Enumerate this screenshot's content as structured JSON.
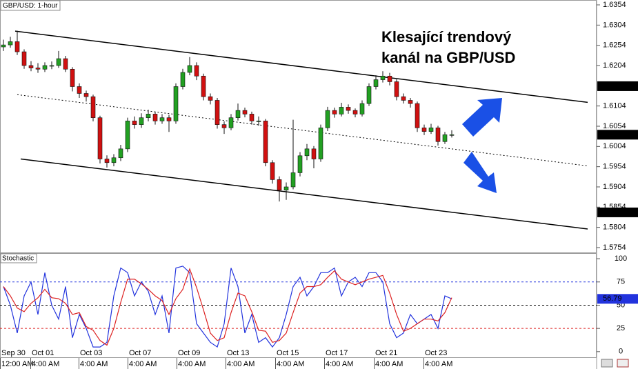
{
  "chart_data": {
    "type": "candlestick",
    "title": "GBP/USD: 1-hour",
    "annotation": [
      "Klesající trendový",
      "kanál na GBP/USD"
    ],
    "up_color": "#22a022",
    "down_color": "#d01010",
    "xlim": [
      -0.5,
      86
    ],
    "ylim": [
      1.5742,
      1.6366
    ],
    "yticks": [
      1.6354,
      1.6304,
      1.6254,
      1.6204,
      1.6104,
      1.6054,
      1.6004,
      1.5954,
      1.5904,
      1.5854,
      1.5804,
      1.5754
    ],
    "xticks": [
      {
        "value": -0.5,
        "label": "Sep 30"
      },
      {
        "value": 3.9,
        "label": "Oct 01"
      },
      {
        "value": 10.9,
        "label": "Oct 03"
      },
      {
        "value": 18,
        "label": "Oct 07"
      },
      {
        "value": 25.1,
        "label": "Oct 09"
      },
      {
        "value": 32.2,
        "label": "Oct 13"
      },
      {
        "value": 39.4,
        "label": "Oct 15"
      },
      {
        "value": 46.5,
        "label": "Oct 17"
      },
      {
        "value": 53.7,
        "label": "Oct 21"
      },
      {
        "value": 60.9,
        "label": "Oct 23"
      }
    ],
    "xtick_times": [
      "12:00 AM",
      "4:00 AM",
      "4:00 AM",
      "4:00 AM",
      "4:00 AM",
      "4:00 AM",
      "4:00 AM",
      "4:00 AM",
      "4:00 AM",
      "4:00 AM"
    ],
    "open": [
      1.625,
      1.6255,
      1.6263,
      1.6238,
      1.6204,
      1.6198,
      1.6195,
      1.6204,
      1.6204,
      1.6221,
      1.6195,
      1.6152,
      1.6135,
      1.6127,
      1.6075,
      1.5973,
      1.5964,
      1.5976,
      1.5998,
      1.6067,
      1.6058,
      1.6075,
      1.6084,
      1.6067,
      1.6075,
      1.6067,
      1.6152,
      1.6187,
      1.6204,
      1.6178,
      1.6127,
      1.6118,
      1.6058,
      1.605,
      1.6075,
      1.6093,
      1.6084,
      1.6067,
      1.6067,
      1.5964,
      1.5922,
      1.5896,
      1.5904,
      1.5939,
      1.5981,
      1.5998,
      1.5973,
      1.605,
      1.6093,
      1.6084,
      1.6101,
      1.6093,
      1.6084,
      1.611,
      1.6152,
      1.6169,
      1.6178,
      1.6164,
      1.6127,
      1.6118,
      1.611,
      1.605,
      1.6041,
      1.605,
      1.6016,
      1.6033
    ],
    "high": [
      1.6268,
      1.6275,
      1.629,
      1.6244,
      1.6215,
      1.621,
      1.6212,
      1.6214,
      1.624,
      1.6228,
      1.62,
      1.616,
      1.6142,
      1.6132,
      1.608,
      1.5982,
      1.5985,
      1.6008,
      1.6075,
      1.6078,
      1.6086,
      1.6095,
      1.609,
      1.6084,
      1.6082,
      1.616,
      1.6196,
      1.6225,
      1.6212,
      1.6184,
      1.6135,
      1.6124,
      1.6066,
      1.6084,
      1.611,
      1.61,
      1.609,
      1.6078,
      1.6072,
      1.597,
      1.593,
      1.5915,
      1.607,
      1.599,
      1.601,
      1.6005,
      1.6058,
      1.6102,
      1.61,
      1.6112,
      1.6108,
      1.6098,
      1.6118,
      1.616,
      1.618,
      1.619,
      1.6186,
      1.617,
      1.6135,
      1.6124,
      1.6115,
      1.6058,
      1.606,
      1.6055,
      1.604,
      1.6044
    ],
    "low": [
      1.624,
      1.6248,
      1.623,
      1.6196,
      1.619,
      1.6186,
      1.6188,
      1.6195,
      1.6198,
      1.6188,
      1.614,
      1.6124,
      1.6115,
      1.6066,
      1.5962,
      1.5952,
      1.5955,
      1.5968,
      1.599,
      1.6048,
      1.605,
      1.6066,
      1.6058,
      1.606,
      1.604,
      1.606,
      1.6145,
      1.618,
      1.6168,
      1.6118,
      1.6108,
      1.6048,
      1.6035,
      1.6044,
      1.6068,
      1.6076,
      1.6058,
      1.6055,
      1.5955,
      1.5912,
      1.5868,
      1.5872,
      1.5898,
      1.593,
      1.597,
      1.595,
      1.5966,
      1.6042,
      1.6075,
      1.6078,
      1.6085,
      1.6076,
      1.6078,
      1.6104,
      1.6145,
      1.6162,
      1.6155,
      1.6118,
      1.611,
      1.61,
      1.604,
      1.6032,
      1.6035,
      1.6006,
      1.601,
      1.6026
    ],
    "close": [
      1.6255,
      1.6263,
      1.6238,
      1.6204,
      1.6198,
      1.6195,
      1.6204,
      1.6204,
      1.6221,
      1.6195,
      1.6152,
      1.6135,
      1.6127,
      1.6075,
      1.5973,
      1.5964,
      1.5976,
      1.5998,
      1.6067,
      1.6058,
      1.6075,
      1.6084,
      1.6067,
      1.6075,
      1.6067,
      1.6152,
      1.6187,
      1.6204,
      1.6178,
      1.6127,
      1.6118,
      1.6058,
      1.605,
      1.6075,
      1.6093,
      1.6084,
      1.6067,
      1.6067,
      1.5964,
      1.5922,
      1.5896,
      1.5904,
      1.5939,
      1.5981,
      1.5998,
      1.5973,
      1.605,
      1.6093,
      1.6084,
      1.6101,
      1.6093,
      1.6084,
      1.611,
      1.6152,
      1.6169,
      1.6178,
      1.6164,
      1.6127,
      1.6118,
      1.611,
      1.605,
      1.6041,
      1.605,
      1.6016,
      1.6033,
      1.6033
    ],
    "channel": [
      {
        "style": "solid",
        "color": "#000000",
        "x": [
          1.7,
          84.7
        ],
        "values": [
          1.6289,
          1.6113
        ]
      },
      {
        "style": "dotted",
        "color": "#000000",
        "x": [
          2,
          84.7
        ],
        "values": [
          1.6132,
          1.5956
        ]
      },
      {
        "style": "solid",
        "color": "#000000",
        "x": [
          2.5,
          84.7
        ],
        "values": [
          1.5973,
          1.58
        ]
      }
    ],
    "price_markers": [
      1.6153,
      1.5841
    ],
    "stochastic": {
      "title": "Stochastic",
      "ylim": [
        -6.8,
        106
      ],
      "yticks": [
        0,
        25,
        50,
        75,
        100
      ],
      "levels": [
        {
          "value": 75,
          "color": "#2233dd"
        },
        {
          "value": 50,
          "color": "#000000"
        },
        {
          "value": 25,
          "color": "#dd2222"
        }
      ],
      "series": [
        {
          "color": "#2233dd",
          "values": [
            70,
            50,
            20,
            60,
            75,
            40,
            85,
            50,
            35,
            70,
            15,
            40,
            25,
            5,
            5,
            10,
            60,
            90,
            85,
            60,
            75,
            65,
            40,
            60,
            20,
            90,
            92,
            85,
            30,
            20,
            10,
            5,
            30,
            90,
            70,
            20,
            40,
            10,
            15,
            5,
            15,
            40,
            70,
            80,
            60,
            70,
            85,
            85,
            90,
            60,
            75,
            80,
            70,
            85,
            85,
            75,
            30,
            15,
            20,
            40,
            30,
            35,
            40,
            25,
            60,
            56.79
          ]
        },
        {
          "color": "#dd2222",
          "values": [
            70,
            60,
            47,
            43,
            52,
            58,
            67,
            58,
            57,
            52,
            40,
            42,
            27,
            23,
            12,
            7,
            25,
            53,
            78,
            78,
            73,
            67,
            60,
            55,
            40,
            57,
            67,
            89,
            69,
            45,
            20,
            12,
            15,
            42,
            63,
            60,
            43,
            23,
            22,
            10,
            12,
            20,
            42,
            63,
            70,
            70,
            72,
            80,
            87,
            78,
            75,
            72,
            75,
            78,
            80,
            82,
            63,
            40,
            22,
            25,
            30,
            35,
            35,
            33,
            42,
            58
          ]
        }
      ]
    }
  }
}
